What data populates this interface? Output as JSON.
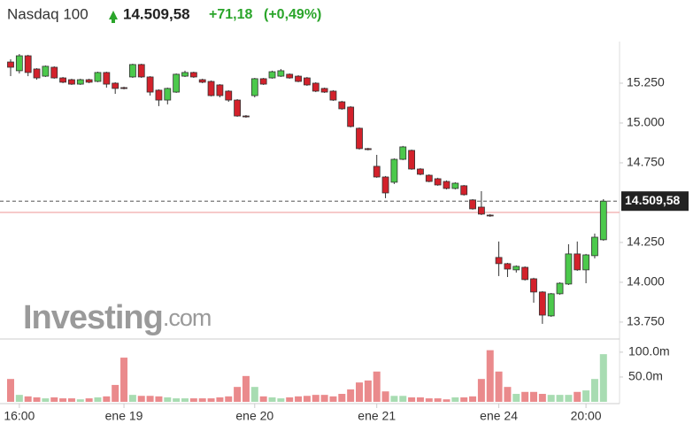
{
  "header": {
    "name": "Nasdaq 100",
    "price": "14.509,58",
    "change": "+71,18",
    "change_pct": "(+0,49%)"
  },
  "chart_data": {
    "type": "candlestick",
    "categories": [
      null,
      "16:00",
      null,
      null,
      null,
      null,
      null,
      null,
      null,
      null,
      null,
      null,
      null,
      "ene 19",
      null,
      null,
      null,
      null,
      null,
      null,
      null,
      null,
      null,
      null,
      null,
      null,
      null,
      null,
      "ene 20",
      null,
      null,
      null,
      null,
      null,
      null,
      null,
      null,
      null,
      null,
      null,
      null,
      null,
      "ene 21",
      null,
      null,
      null,
      null,
      null,
      null,
      null,
      null,
      null,
      null,
      null,
      null,
      null,
      "ene 24",
      null,
      null,
      null,
      null,
      null,
      null,
      null,
      null,
      null,
      "20:00",
      null,
      null
    ],
    "open": [
      15383,
      15328,
      15422,
      15339,
      15294,
      15350,
      15283,
      15272,
      15244,
      15272,
      15261,
      15317,
      15250,
      15222,
      15289,
      15367,
      15289,
      15206,
      15144,
      15194,
      15294,
      15317,
      15272,
      15261,
      15239,
      15200,
      15144,
      15044,
      15172,
      15278,
      15283,
      15294,
      15306,
      15294,
      15283,
      15250,
      15217,
      15200,
      15133,
      15100,
      14967,
      14839,
      14728,
      14661,
      14628,
      14772,
      14828,
      14711,
      14672,
      14650,
      14633,
      14589,
      14606,
      14517,
      14472,
      14422,
      14156,
      14117,
      14078,
      14094,
      14022,
      13939,
      13789,
      13928,
      13989,
      14178,
      14078,
      14167,
      14267
    ],
    "high": [
      15400,
      15433,
      15428,
      15344,
      15361,
      15356,
      15289,
      15278,
      15278,
      15278,
      15322,
      15322,
      15256,
      15228,
      15372,
      15372,
      15294,
      15211,
      15222,
      15311,
      15328,
      15322,
      15278,
      15267,
      15244,
      15206,
      15150,
      15050,
      15283,
      15283,
      15328,
      15339,
      15311,
      15300,
      15289,
      15256,
      15222,
      15206,
      15139,
      15106,
      14972,
      14844,
      14800,
      14667,
      14778,
      14856,
      14833,
      14717,
      14678,
      14656,
      14639,
      14628,
      14611,
      14522,
      14572,
      14428,
      14256,
      14122,
      14106,
      14100,
      14028,
      13944,
      13933,
      14000,
      14239,
      14256,
      14178,
      14306,
      14522
    ],
    "low": [
      15294,
      15311,
      15294,
      15272,
      15289,
      15278,
      15250,
      15239,
      15239,
      15250,
      15256,
      15222,
      15183,
      15211,
      15283,
      15283,
      15172,
      15106,
      15117,
      15189,
      15289,
      15283,
      15250,
      15167,
      15161,
      15133,
      15039,
      15033,
      15161,
      15239,
      15278,
      15289,
      15278,
      15256,
      15233,
      15194,
      15189,
      15139,
      15083,
      14972,
      14833,
      14828,
      14656,
      14528,
      14617,
      14767,
      14706,
      14672,
      14628,
      14606,
      14583,
      14583,
      14544,
      14456,
      14422,
      14411,
      14039,
      14033,
      14061,
      14011,
      13872,
      13739,
      13783,
      13922,
      13983,
      14072,
      13994,
      14150,
      14261
    ],
    "close": [
      15350,
      15422,
      15317,
      15283,
      15356,
      15283,
      15256,
      15244,
      15272,
      15256,
      15317,
      15244,
      15217,
      15217,
      15367,
      15289,
      15194,
      15144,
      15217,
      15306,
      15317,
      15289,
      15256,
      15172,
      15172,
      15144,
      15044,
      15039,
      15278,
      15244,
      15322,
      15328,
      15283,
      15261,
      15239,
      15200,
      15194,
      15144,
      15089,
      14978,
      14839,
      14833,
      14661,
      14561,
      14772,
      14850,
      14711,
      14678,
      14633,
      14611,
      14589,
      14622,
      14550,
      14461,
      14428,
      14417,
      14117,
      14083,
      14100,
      14017,
      13939,
      13794,
      13928,
      13994,
      14178,
      14078,
      14172,
      14283,
      14509.58
    ],
    "up_color": "#4cc94c",
    "down_color": "#d3212b",
    "ylim": [
      13644,
      15511
    ],
    "yticks": [
      {
        "value": 13750,
        "label": "13.750"
      },
      {
        "value": 14000,
        "label": "14.000"
      },
      {
        "value": 14250,
        "label": "14.250"
      },
      {
        "value": 14750,
        "label": "14.750"
      },
      {
        "value": 15000,
        "label": "15.000"
      },
      {
        "value": 15250,
        "label": "15.250"
      }
    ],
    "last_price": {
      "value": 14509.58,
      "label": "14.509,58"
    },
    "prev_close": 14438.4,
    "volume": {
      "values": [
        46,
        14,
        11,
        9,
        7,
        9,
        7,
        7,
        5,
        7,
        9,
        11,
        34,
        89,
        14,
        12,
        12,
        11,
        9,
        7,
        7,
        7,
        7,
        7,
        9,
        11,
        30,
        52,
        30,
        11,
        9,
        7,
        9,
        11,
        12,
        14,
        14,
        11,
        16,
        25,
        39,
        43,
        61,
        21,
        12,
        12,
        9,
        9,
        7,
        7,
        5,
        9,
        9,
        11,
        46,
        104,
        61,
        30,
        16,
        20,
        20,
        16,
        14,
        14,
        14,
        20,
        23,
        46,
        96
      ],
      "up_color": "#a8dcb2",
      "down_color": "#ea8a8c",
      "ylim": [
        0,
        123
      ],
      "yticks": [
        {
          "value": 50,
          "label": "50.0m"
        },
        {
          "value": 100,
          "label": "100.0m"
        }
      ]
    },
    "watermark": {
      "brand": "Investing",
      "suffix": ".com"
    }
  }
}
